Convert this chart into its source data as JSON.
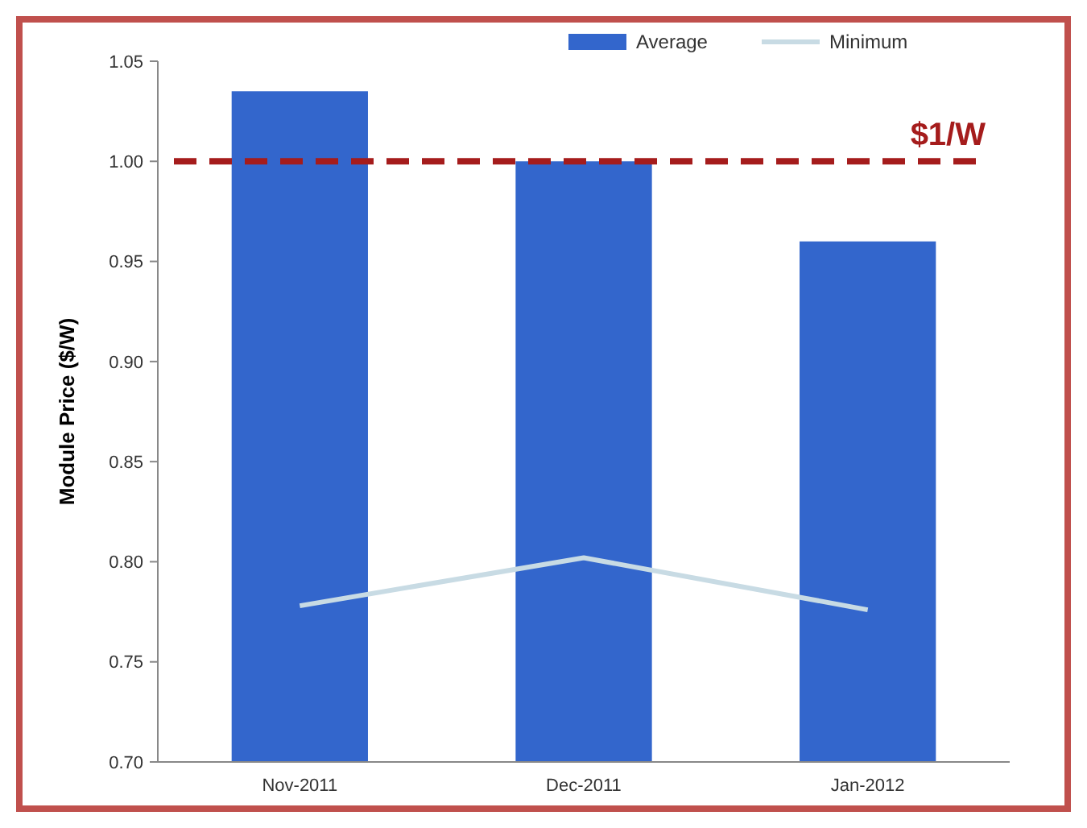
{
  "chart_data": {
    "type": "bar",
    "ylabel": "Module Price ($/W)",
    "categories": [
      "Nov-2011",
      "Dec-2011",
      "Jan-2012"
    ],
    "series": [
      {
        "name": "Average",
        "color": "#3366cc",
        "values": [
          1.035,
          1.0,
          0.96
        ]
      },
      {
        "name": "Minimum",
        "type": "line",
        "color": "#c8dbe4",
        "values": [
          0.778,
          0.802,
          0.776
        ]
      }
    ],
    "ylim": [
      0.7,
      1.05
    ],
    "yticks": [
      {
        "value": 0.7,
        "label": "0.70"
      },
      {
        "value": 0.75,
        "label": "0.75"
      },
      {
        "value": 0.8,
        "label": "0.80"
      },
      {
        "value": 0.85,
        "label": "0.85"
      },
      {
        "value": 0.9,
        "label": "0.90"
      },
      {
        "value": 0.95,
        "label": "0.95"
      },
      {
        "value": 1.0,
        "label": "1.00"
      },
      {
        "value": 1.05,
        "label": "1.05"
      }
    ],
    "ref_lines": [
      {
        "axis": "y",
        "value": 1.0,
        "label": "$1/W",
        "color": "#a51c1c",
        "line_style": "dashed"
      }
    ],
    "legend": "top",
    "grid": false,
    "marker": "none"
  }
}
